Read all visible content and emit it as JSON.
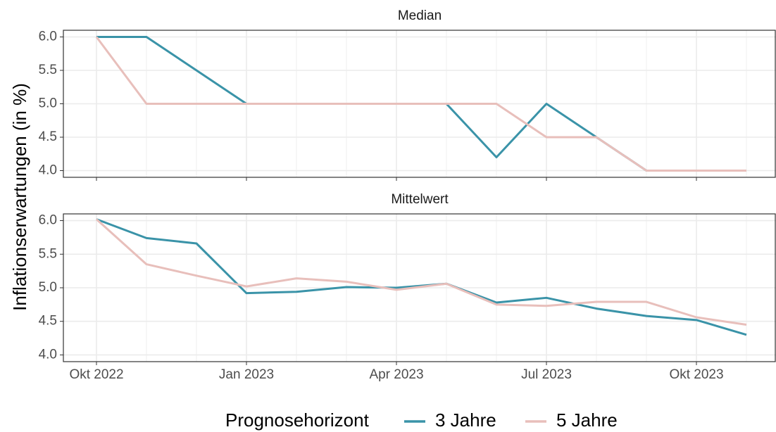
{
  "ylabel": "Inflationserwartungen (in %)",
  "legend_title": "Prognosehorizont",
  "chart_data": [
    {
      "type": "line",
      "title": "Median",
      "categories": [
        "Okt 2022",
        null,
        null,
        "Jan 2023",
        null,
        null,
        "Apr 2023",
        null,
        null,
        "Jul 2023",
        null,
        null,
        "Okt 2023",
        null
      ],
      "series": [
        {
          "name": "3 Jahre",
          "color": "#3a93a8",
          "values": [
            6.0,
            6.0,
            5.5,
            5.0,
            5.0,
            5.0,
            5.0,
            5.0,
            4.2,
            5.0,
            4.5,
            4.0,
            4.0,
            4.0
          ]
        },
        {
          "name": "5 Jahre",
          "color": "#e8bfbb",
          "values": [
            6.0,
            5.0,
            5.0,
            5.0,
            5.0,
            5.0,
            5.0,
            5.0,
            5.0,
            4.5,
            4.5,
            4.0,
            4.0,
            4.0
          ]
        }
      ],
      "ylim": [
        3.9,
        6.1
      ],
      "yticks": [
        {
          "value": 4,
          "label": "4.0"
        },
        4.5,
        {
          "value": 5,
          "label": "5.0"
        },
        5.5,
        {
          "value": 6,
          "label": "6.0"
        }
      ],
      "grid": true
    },
    {
      "type": "line",
      "title": "Mittelwert",
      "categories": [
        "Okt 2022",
        null,
        null,
        "Jan 2023",
        null,
        null,
        "Apr 2023",
        null,
        null,
        "Jul 2023",
        null,
        null,
        "Okt 2023",
        null
      ],
      "series": [
        {
          "name": "3 Jahre",
          "color": "#3a93a8",
          "values": [
            6.02,
            5.74,
            5.66,
            4.92,
            4.94,
            5.01,
            5.0,
            5.06,
            4.78,
            4.85,
            4.69,
            4.58,
            4.52,
            4.3
          ]
        },
        {
          "name": "5 Jahre",
          "color": "#e8bfbb",
          "values": [
            6.02,
            5.35,
            5.18,
            5.02,
            5.14,
            5.09,
            4.97,
            5.06,
            4.75,
            4.73,
            4.79,
            4.79,
            4.56,
            4.45
          ]
        }
      ],
      "ylim": [
        3.9,
        6.1
      ],
      "yticks": [
        {
          "value": 4,
          "label": "4.0"
        },
        4.5,
        {
          "value": 5,
          "label": "5.0"
        },
        5.5,
        {
          "value": 6,
          "label": "6.0"
        }
      ],
      "grid": true
    }
  ]
}
